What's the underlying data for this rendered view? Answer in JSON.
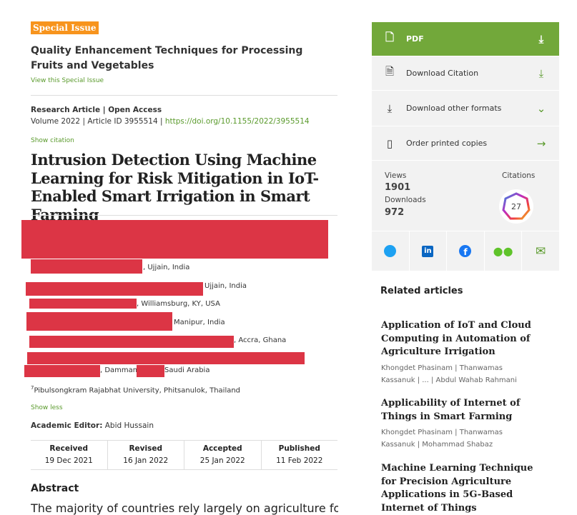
{
  "special_issue": {
    "badge": "Special Issue",
    "title": "Quality Enhancement Techniques for Processing Fruits and Vegetables",
    "link": "View this Special Issue"
  },
  "article": {
    "type": "Research Article | Open Access",
    "volume": "Volume 2022 | Article ID 3955514 | ",
    "doi": "https://doi.org/10.1155/2022/3955514",
    "show_citation": "Show citation",
    "title": "Intrusion Detection Using Machine Learning for Risk Mitigation in IoT-Enabled Smart Irrigation in Smart Farming"
  },
  "affiliations": [
    ", Ujjain, India",
    "Ujjain, India",
    ", Williamsburg, KY, USA",
    "Manipur, India",
    ", Accra, Ghana",
    ", Dammam",
    "Saudi Arabia",
    "Pibulsongkram Rajabhat University, Phitsanulok, Thailand"
  ],
  "aff_sup": "7",
  "show_less": "Show less",
  "editor": {
    "label": "Academic Editor:",
    "name": " Abid Hussain"
  },
  "dates": [
    {
      "label": "Received",
      "value": "19 Dec 2021"
    },
    {
      "label": "Revised",
      "value": "16 Jan 2022"
    },
    {
      "label": "Accepted",
      "value": "25 Jan 2022"
    },
    {
      "label": "Published",
      "value": "11 Feb 2022"
    }
  ],
  "abstract": {
    "heading": "Abstract",
    "text": "The majority of countries rely largely on agriculture for employment. Irrigation accounts"
  },
  "actions": {
    "pdf": "PDF",
    "citation": "Download Citation",
    "formats": "Download other formats",
    "order": "Order printed copies"
  },
  "stats": {
    "views_label": "Views",
    "views": "1901",
    "downloads_label": "Downloads",
    "downloads": "972",
    "citations_label": "Citations",
    "citations": "27"
  },
  "related": {
    "heading": "Related articles",
    "items": [
      {
        "title": "Application of IoT and Cloud Computing in Automation of Agriculture Irrigation",
        "authors": "Khongdet Phasinam | Thanwamas Kassanuk | ... | Abdul Wahab Rahmani"
      },
      {
        "title": "Applicability of Internet of Things in Smart Farming",
        "authors": "Khongdet Phasinam | Thanwamas Kassanuk | Mohammad Shabaz"
      },
      {
        "title": "Machine Learning Technique for Precision Agriculture Applications in 5G-Based Internet of Things",
        "authors": ""
      }
    ]
  }
}
